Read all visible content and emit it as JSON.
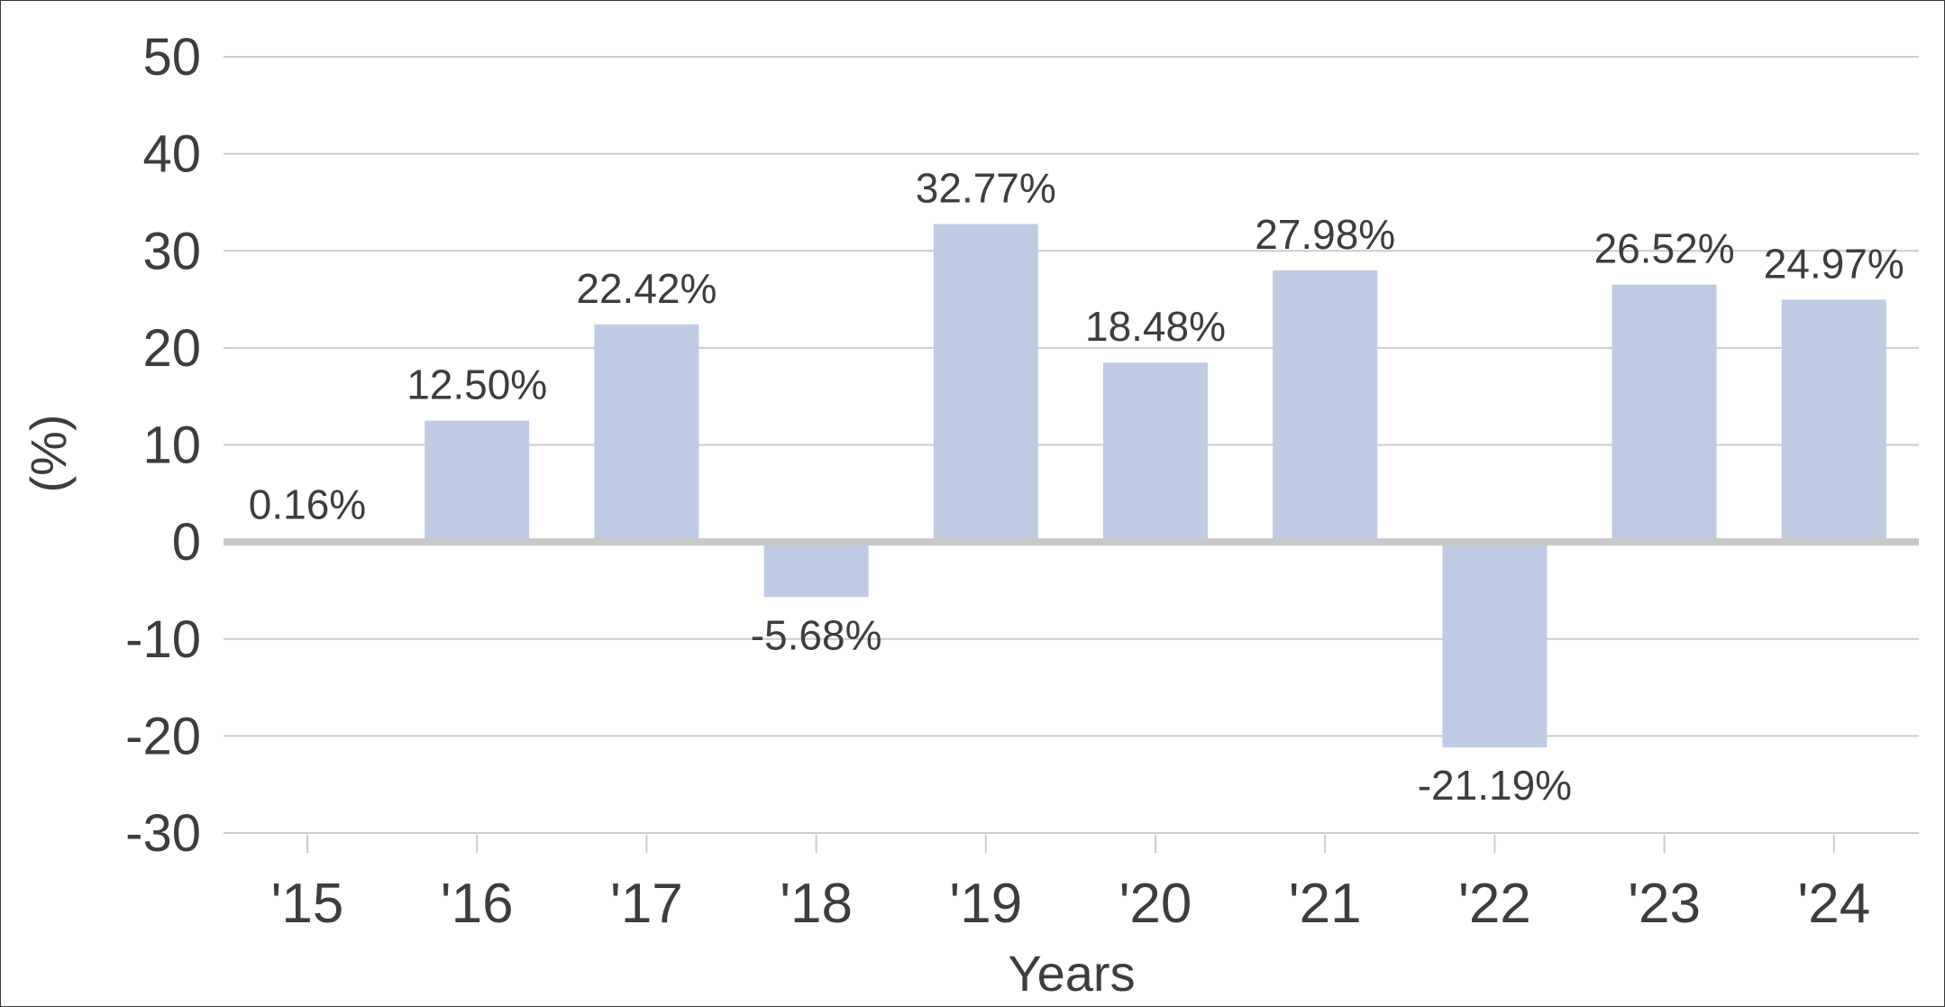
{
  "chart_data": {
    "type": "bar",
    "categories": [
      "'15",
      "'16",
      "'17",
      "'18",
      "'19",
      "'20",
      "'21",
      "'22",
      "'23",
      "'24"
    ],
    "values": [
      0.16,
      12.5,
      22.42,
      -5.68,
      32.77,
      18.48,
      27.98,
      -21.19,
      26.52,
      24.97
    ],
    "data_labels": [
      "0.16%",
      "12.50%",
      "22.42%",
      "-5.68%",
      "32.77%",
      "18.48%",
      "27.98%",
      "-21.19%",
      "26.52%",
      "24.97%"
    ],
    "title": "",
    "xlabel": "Years",
    "ylabel": "(%)",
    "ylim": [
      -30,
      50
    ],
    "yticks": [
      50,
      40,
      30,
      20,
      10,
      0,
      -10,
      -20,
      -30
    ],
    "grid": true,
    "legend": "none",
    "colors": {
      "bar": "#bfcae3",
      "grid": "#cccccc",
      "zero_line": "#c8c8c8",
      "text": "#3d3d3d",
      "frame": "#3a3a3a"
    }
  }
}
